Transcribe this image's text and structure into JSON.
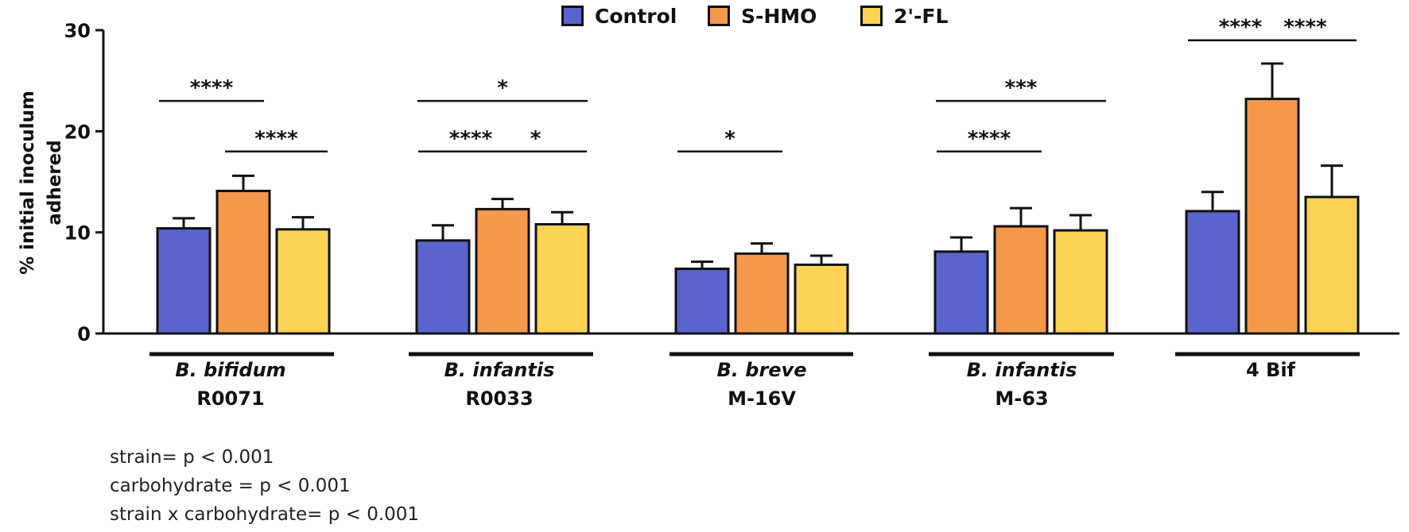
{
  "chart_data": {
    "type": "bar",
    "ylabel": "% initial inoculum adhered",
    "ylim": [
      0,
      30
    ],
    "yticks": [
      0,
      10,
      20,
      30
    ],
    "series": [
      {
        "name": "Control",
        "color": "#5b63cf",
        "values": [
          10.4,
          9.2,
          6.4,
          8.1,
          12.1
        ],
        "errors": [
          1.0,
          1.5,
          0.7,
          1.4,
          1.9
        ]
      },
      {
        "name": "S-HMO",
        "color": "#f5984c",
        "values": [
          14.1,
          12.3,
          7.9,
          10.6,
          23.2
        ],
        "errors": [
          1.5,
          1.0,
          1.0,
          1.8,
          3.5
        ]
      },
      {
        "name": "2'-FL",
        "color": "#fdd356",
        "values": [
          10.3,
          10.8,
          6.8,
          10.2,
          13.5
        ],
        "errors": [
          1.2,
          1.2,
          0.9,
          1.5,
          3.1
        ]
      }
    ],
    "groups": [
      {
        "line1": "B. bifidum",
        "line2": "R0071"
      },
      {
        "line1": "B. infantis",
        "line2": "R0033"
      },
      {
        "line1": "B. breve",
        "line2": "M-16V"
      },
      {
        "line1": "B. infantis",
        "line2": "M-63"
      },
      {
        "line1": "",
        "line2": "4 Bif"
      }
    ],
    "significance": [
      {
        "group": 0,
        "from": 0,
        "to": 1,
        "y": 23.0,
        "label": "****"
      },
      {
        "group": 0,
        "from": 1,
        "to": 2,
        "y": 18.0,
        "label": "****"
      },
      {
        "group": 1,
        "from": 0,
        "to": 2,
        "y": 23.0,
        "label": "*"
      },
      {
        "group": 1,
        "from": 0,
        "to": 1,
        "y": 18.0,
        "label": "****"
      },
      {
        "group": 1,
        "from": 1,
        "to": 2,
        "y": 18.0,
        "label": "*"
      },
      {
        "group": 2,
        "from": 0,
        "to": 1,
        "y": 18.0,
        "label": "*"
      },
      {
        "group": 3,
        "from": 0,
        "to": 2,
        "y": 23.0,
        "label": "***"
      },
      {
        "group": 3,
        "from": 0,
        "to": 1,
        "y": 18.0,
        "label": "****"
      },
      {
        "group": 4,
        "from": 0,
        "to": 1,
        "y": 29.0,
        "label": "****"
      },
      {
        "group": 4,
        "from": 1,
        "to": 2,
        "y": 29.0,
        "label": "****"
      }
    ]
  },
  "stats": {
    "line1": "strain= p < 0.001",
    "line2": "carbohydrate = p < 0.001",
    "line3": "strain x carbohydrate= p < 0.001"
  }
}
